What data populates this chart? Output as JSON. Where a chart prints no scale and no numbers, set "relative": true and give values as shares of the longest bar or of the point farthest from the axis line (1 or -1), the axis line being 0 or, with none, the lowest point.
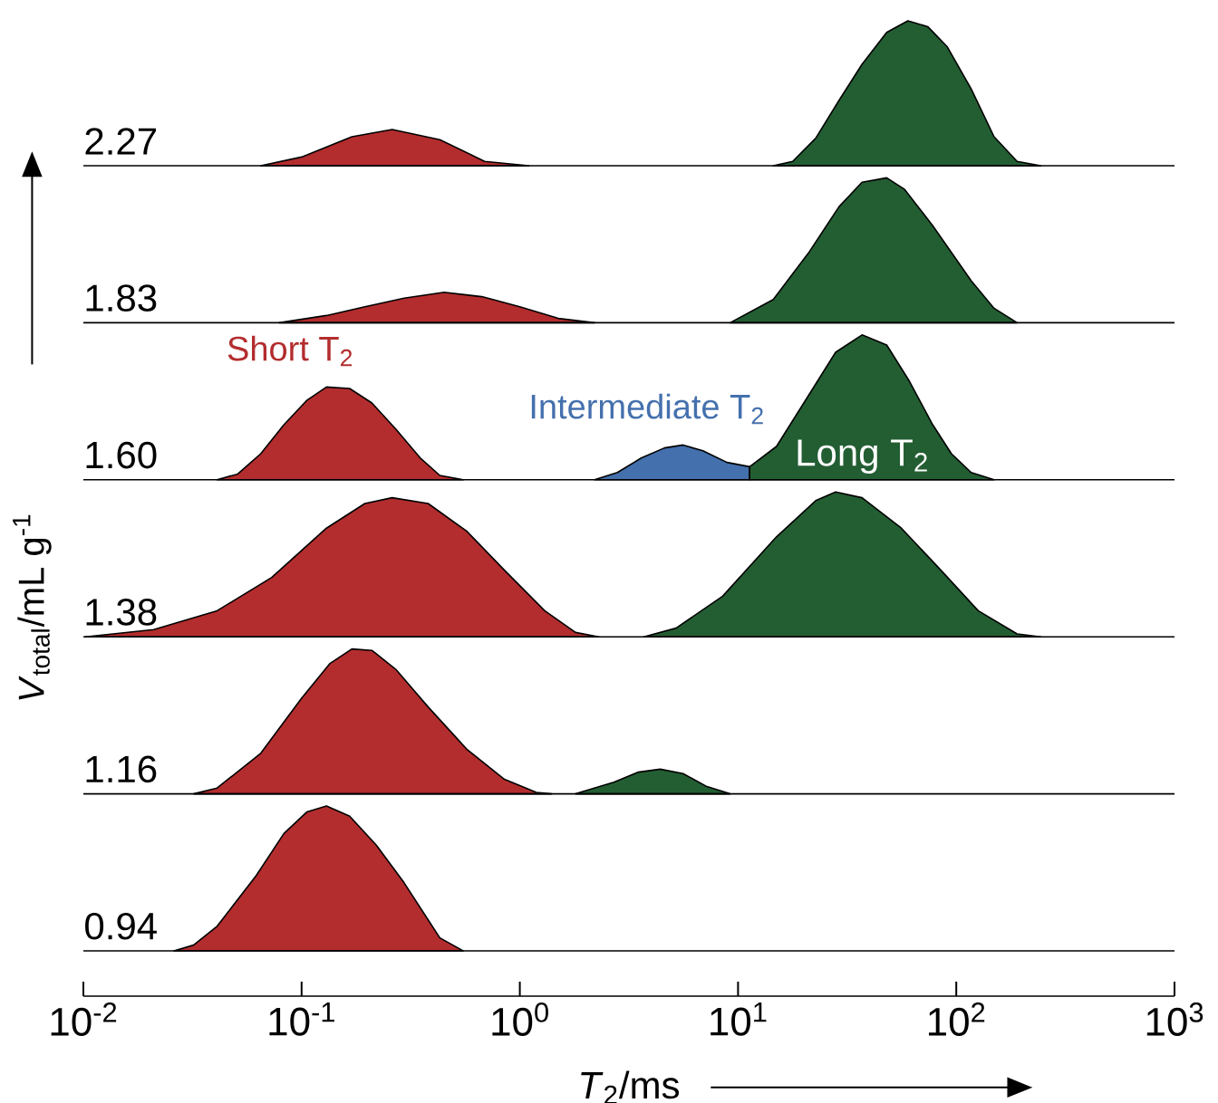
{
  "chart_data": [
    {
      "type": "area",
      "relative": true,
      "log": "x",
      "xlim": [
        0.01,
        1000
      ],
      "annotations": [
        "2.27"
      ],
      "series": [
        {
          "color": "#b32d2e",
          "x": [
            0.065,
            0.1,
            0.17,
            0.26,
            0.43,
            0.69,
            1.1
          ],
          "values": [
            0,
            0.06,
            0.2,
            0.25,
            0.18,
            0.03,
            0
          ]
        },
        {
          "color": "#235e33",
          "x": [
            14.5,
            17.8,
            22.7,
            29,
            37,
            48,
            60,
            74,
            91,
            117,
            149,
            190,
            244
          ],
          "values": [
            0,
            0.03,
            0.19,
            0.45,
            0.7,
            0.92,
            1,
            0.96,
            0.82,
            0.53,
            0.2,
            0.03,
            0
          ]
        }
      ]
    },
    {
      "type": "area",
      "relative": true,
      "log": "x",
      "xlim": [
        0.01,
        1000
      ],
      "annotations": [
        "1.83"
      ],
      "series": [
        {
          "color": "#b32d2e",
          "x": [
            0.079,
            0.13,
            0.195,
            0.295,
            0.45,
            0.67,
            1.0,
            1.5,
            2.2
          ],
          "values": [
            0,
            0.05,
            0.11,
            0.17,
            0.21,
            0.18,
            0.11,
            0.03,
            0
          ]
        },
        {
          "color": "#235e33",
          "x": [
            9.2,
            14.5,
            21,
            29,
            37,
            48,
            58,
            78,
            117,
            149,
            190
          ],
          "values": [
            0,
            0.16,
            0.48,
            0.8,
            0.97,
            1,
            0.92,
            0.67,
            0.29,
            0.1,
            0
          ]
        }
      ]
    },
    {
      "type": "area",
      "relative": true,
      "log": "x",
      "xlim": [
        0.01,
        1000
      ],
      "annotations": [
        "1.60"
      ],
      "series": [
        {
          "name": "Short T$_{2}$",
          "color": "#b32d2e",
          "x": [
            0.041,
            0.051,
            0.065,
            0.083,
            0.106,
            0.13,
            0.166,
            0.21,
            0.27,
            0.35,
            0.43,
            0.55
          ],
          "values": [
            0,
            0.04,
            0.18,
            0.38,
            0.55,
            0.64,
            0.63,
            0.53,
            0.35,
            0.15,
            0.03,
            0
          ]
        },
        {
          "name": "Intermediate T$_{2}$",
          "color": "#4470ad",
          "x": [
            2.2,
            2.8,
            3.6,
            4.6,
            5.6,
            6.9,
            8.9,
            11.3
          ],
          "values": [
            0,
            0.05,
            0.15,
            0.22,
            0.24,
            0.2,
            0.12,
            0.09
          ]
        },
        {
          "name": "Long T$_{2}$",
          "color": "#235e33",
          "x": [
            11.3,
            15,
            21,
            28,
            37,
            48,
            61,
            78,
            95,
            117,
            149
          ],
          "values": [
            0.09,
            0.23,
            0.58,
            0.88,
            1,
            0.93,
            0.68,
            0.38,
            0.18,
            0.05,
            0
          ]
        }
      ]
    },
    {
      "type": "area",
      "relative": true,
      "log": "x",
      "xlim": [
        0.01,
        1000
      ],
      "annotations": [
        "1.38"
      ],
      "ylabel": "*V*$_{total}$/mL g$^{-1}$",
      "series": [
        {
          "color": "#b32d2e",
          "x": [
            0.0102,
            0.021,
            0.041,
            0.073,
            0.13,
            0.195,
            0.26,
            0.38,
            0.57,
            0.85,
            1.3,
            1.8,
            2.3
          ],
          "values": [
            0,
            0.05,
            0.18,
            0.41,
            0.75,
            0.92,
            0.96,
            0.92,
            0.73,
            0.46,
            0.18,
            0.03,
            0
          ]
        },
        {
          "color": "#235e33",
          "x": [
            3.7,
            5.2,
            8.5,
            15,
            22.7,
            28,
            37,
            56,
            85,
            126,
            190,
            244
          ],
          "values": [
            0,
            0.06,
            0.28,
            0.69,
            0.94,
            1,
            0.96,
            0.75,
            0.46,
            0.18,
            0.02,
            0
          ]
        }
      ]
    },
    {
      "type": "area",
      "relative": true,
      "log": "x",
      "xlim": [
        0.01,
        1000
      ],
      "annotations": [
        "1.16"
      ],
      "series": [
        {
          "color": "#b32d2e",
          "x": [
            0.032,
            0.041,
            0.065,
            0.1,
            0.135,
            0.17,
            0.21,
            0.27,
            0.38,
            0.57,
            0.85,
            1.19,
            1.4
          ],
          "values": [
            0,
            0.04,
            0.28,
            0.66,
            0.9,
            1,
            0.99,
            0.86,
            0.6,
            0.31,
            0.1,
            0.01,
            0
          ]
        },
        {
          "color": "#235e33",
          "x": [
            1.8,
            2.7,
            3.5,
            4.4,
            5.6,
            7.2,
            9.2
          ],
          "values": [
            0,
            0.08,
            0.15,
            0.17,
            0.14,
            0.05,
            0
          ]
        }
      ]
    },
    {
      "type": "area",
      "relative": true,
      "log": "x",
      "xlim": [
        0.01,
        1000
      ],
      "annotations": [
        "0.94"
      ],
      "xlabel": "*T*$_{2}$/ms",
      "xticks": [
        {
          "value": 0.01,
          "label": "10$^{-2}$"
        },
        {
          "value": 0.1,
          "label": "10$^{-1}$"
        },
        {
          "value": 1,
          "label": "10$^{0}$"
        },
        {
          "value": 10,
          "label": "10$^{1}$"
        },
        {
          "value": 100,
          "label": "10$^{2}$"
        },
        {
          "value": 1000,
          "label": "10$^{3}$"
        }
      ],
      "series": [
        {
          "color": "#b32d2e",
          "x": [
            0.026,
            0.032,
            0.041,
            0.062,
            0.083,
            0.106,
            0.13,
            0.166,
            0.22,
            0.295,
            0.43,
            0.55
          ],
          "values": [
            0,
            0.04,
            0.17,
            0.52,
            0.81,
            0.96,
            1,
            0.93,
            0.73,
            0.47,
            0.09,
            0
          ]
        }
      ]
    }
  ]
}
